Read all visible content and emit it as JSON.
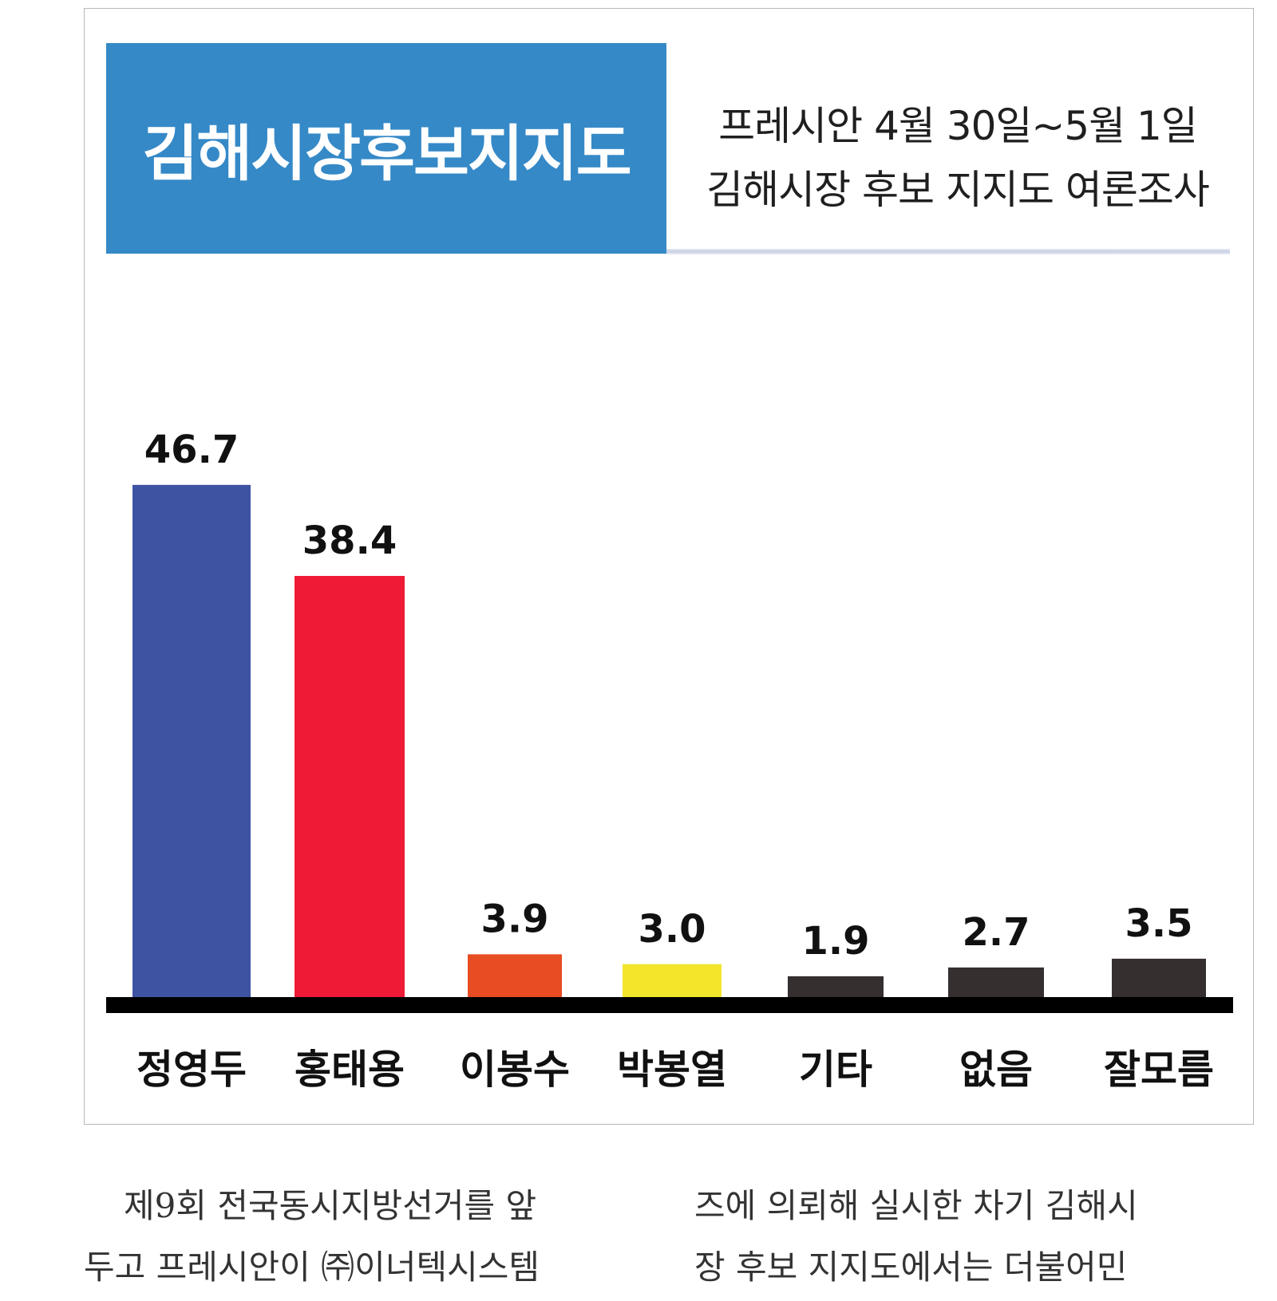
{
  "header": {
    "title": "김해시장후보지지도",
    "subtitle_line1": "프레시안 4월 30일~5월 1일",
    "subtitle_line2": "김해시장 후보 지지도 여론조사",
    "title_bg_color": "#3589c7"
  },
  "chart_data": {
    "type": "bar",
    "title": "김해시장후보지지도",
    "categories": [
      "정영두",
      "홍태용",
      "이봉수",
      "박봉열",
      "기타",
      "없음",
      "잘모름"
    ],
    "values": [
      46.7,
      38.4,
      3.9,
      3.0,
      1.9,
      2.7,
      3.5
    ],
    "value_labels": [
      "46.7",
      "38.4",
      "3.9",
      "3.0",
      "1.9",
      "2.7",
      "3.5"
    ],
    "colors": [
      "#3f53a3",
      "#ee1a36",
      "#e84c22",
      "#f2e52a",
      "#362f2f",
      "#362f2f",
      "#362f2f"
    ],
    "xlabel": "",
    "ylabel": "",
    "ylim": [
      0,
      50
    ],
    "grid": false,
    "legend": "none"
  },
  "article": {
    "left_line1": "제9회 전국동시지방선거를 앞",
    "left_line2": "두고 프레시안이 ㈜이너텍시스템",
    "right_line1": "즈에 의뢰해 실시한 차기 김해시",
    "right_line2": "장 후보 지지도에서는 더불어민"
  }
}
